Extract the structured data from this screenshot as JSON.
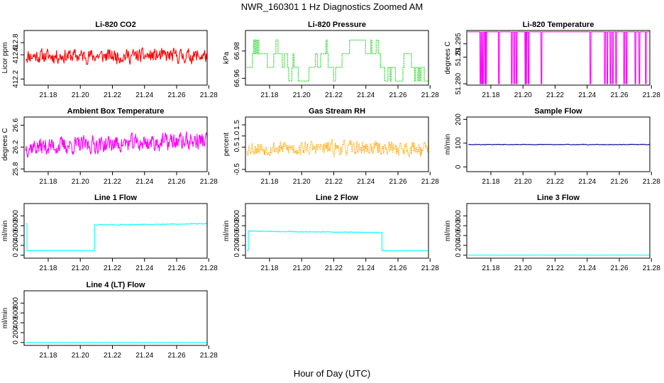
{
  "figure": {
    "title": "NWR_160301  1 Hz Diagnostics Zoomed AM",
    "xlabel": "Hour of Day (UTC)"
  },
  "chart_data": [
    {
      "id": "li820-co2",
      "type": "line",
      "title": "Li-820 CO2",
      "ylabel": "Licor ppm",
      "color": "#ff0000",
      "style": "solid",
      "xlim": [
        21.165,
        21.279
      ],
      "ylim": [
        412.1,
        413.0
      ],
      "yticks": [
        412.2,
        412.6,
        412.8
      ],
      "ytick_labels": [
        "412.2",
        "412.6",
        "412.8"
      ],
      "xticks": [
        21.18,
        21.2,
        21.22,
        21.24,
        21.26,
        21.28
      ],
      "xtick_labels": [
        "21.18",
        "21.20",
        "21.22",
        "21.24",
        "21.26",
        "21.28"
      ],
      "series": [
        {
          "name": "CO2",
          "segments": [
            {
              "x0": 21.166,
              "x1": 21.279,
              "kind": "noise",
              "base": 412.58,
              "amp": 0.16,
              "seed": 11
            }
          ]
        }
      ]
    },
    {
      "id": "li820-pressure",
      "type": "step",
      "title": "Li-820 Pressure",
      "ylabel": "kPa",
      "color": "#00cc00",
      "style": "dotted",
      "xlim": [
        21.165,
        21.279
      ],
      "ylim": [
        66.955,
        66.995
      ],
      "yticks": [
        66.96,
        66.98
      ],
      "ytick_labels": [
        "66.96",
        "66.98"
      ],
      "xticks": [
        21.18,
        21.2,
        21.22,
        21.24,
        21.26,
        21.28
      ],
      "xtick_labels": [
        "21.18",
        "21.20",
        "21.22",
        "21.24",
        "21.26",
        "21.28"
      ],
      "series": [
        {
          "name": "Pressure",
          "levels": [
            66.958,
            66.968,
            66.978,
            66.988
          ],
          "seed": 23,
          "hold": 60
        }
      ]
    },
    {
      "id": "li820-temperature",
      "type": "line",
      "title": "Li-820 Temperature",
      "ylabel": "degrees C",
      "color": "#ff00ff",
      "style": "solid",
      "xlim": [
        21.165,
        21.279
      ],
      "ylim": [
        51.2795,
        51.3
      ],
      "yticks": [
        51.28,
        51.29,
        51.295
      ],
      "ytick_labels": [
        "51.280",
        "51.29",
        "51.295"
      ],
      "xticks": [
        21.18,
        21.2,
        21.22,
        21.24,
        21.26,
        21.28
      ],
      "xtick_labels": [
        "21.18",
        "21.20",
        "21.22",
        "21.24",
        "21.26",
        "21.28"
      ],
      "series": [
        {
          "name": "Temperature",
          "base": 51.2995,
          "low": 51.28,
          "dips": [
            21.1735,
            21.1745,
            21.1752,
            21.1765,
            21.177,
            21.185,
            21.193,
            21.1945,
            21.196,
            21.2015,
            21.202,
            21.2035,
            21.2115,
            21.242,
            21.251,
            21.2525,
            21.2545,
            21.256,
            21.258,
            21.263,
            21.2645,
            21.27,
            21.2725,
            21.2765
          ]
        }
      ]
    },
    {
      "id": "ambient-box-temperature",
      "type": "line",
      "title": "Ambient Box Temperature",
      "ylabel": "degrees C",
      "color": "#ff00ff",
      "style": "solid",
      "xlim": [
        21.165,
        21.279
      ],
      "ylim": [
        25.75,
        26.75
      ],
      "yticks": [
        25.8,
        26.2,
        26.6
      ],
      "ytick_labels": [
        "25.8",
        "26.2",
        "26.6"
      ],
      "xticks": [
        21.18,
        21.2,
        21.22,
        21.24,
        21.26,
        21.28
      ],
      "xtick_labels": [
        "21.18",
        "21.20",
        "21.22",
        "21.24",
        "21.26",
        "21.28"
      ],
      "series": [
        {
          "name": "Box Temp",
          "segments": [
            {
              "x0": 21.166,
              "x1": 21.279,
              "kind": "noise",
              "base": 26.2,
              "amp": 0.22,
              "trend": 0.12,
              "seed": 37
            }
          ]
        }
      ]
    },
    {
      "id": "gas-stream-rh",
      "type": "line",
      "title": "Gas Stream RH",
      "ylabel": "percent",
      "color": "#ffa500",
      "style": "dotted",
      "xlim": [
        21.165,
        21.279
      ],
      "ylim": [
        -0.6,
        1.85
      ],
      "yticks": [
        -0.5,
        0.5,
        1.0,
        1.5
      ],
      "ytick_labels": [
        "-0.5",
        "0.5",
        "1.0",
        "1.5"
      ],
      "xticks": [
        21.18,
        21.2,
        21.22,
        21.24,
        21.26,
        21.28
      ],
      "xtick_labels": [
        "21.18",
        "21.20",
        "21.22",
        "21.24",
        "21.26",
        "21.28"
      ],
      "series": [
        {
          "name": "RH",
          "segments": [
            {
              "x0": 21.166,
              "x1": 21.279,
              "kind": "noise",
              "base": 0.45,
              "amp": 0.45,
              "seed": 53
            }
          ]
        }
      ]
    },
    {
      "id": "sample-flow",
      "type": "line",
      "title": "Sample Flow",
      "ylabel": "ml/min",
      "color": "#00008b",
      "style": "solid",
      "xlim": [
        21.165,
        21.279
      ],
      "ylim": [
        -20,
        210
      ],
      "yticks": [
        0,
        100,
        200
      ],
      "ytick_labels": [
        "0",
        "100",
        "200"
      ],
      "xticks": [
        21.18,
        21.2,
        21.22,
        21.24,
        21.26,
        21.28
      ],
      "xtick_labels": [
        "21.18",
        "21.20",
        "21.22",
        "21.24",
        "21.26",
        "21.28"
      ],
      "series": [
        {
          "name": "Sample Flow",
          "segments": [
            {
              "x0": 21.166,
              "x1": 21.279,
              "kind": "noise",
              "base": 94,
              "amp": 2,
              "seed": 61
            }
          ]
        }
      ]
    },
    {
      "id": "line-1-flow",
      "type": "line",
      "title": "Line 1 Flow",
      "ylabel": "ml/min",
      "color": "#00ffff",
      "style": "solid",
      "xlim": [
        21.165,
        21.279
      ],
      "ylim": [
        -60,
        1050
      ],
      "yticks": [
        0,
        200,
        400,
        600,
        800
      ],
      "ytick_labels": [
        "0",
        "200",
        "400",
        "600",
        "800"
      ],
      "xticks": [
        21.18,
        21.2,
        21.22,
        21.24,
        21.26,
        21.28
      ],
      "xtick_labels": [
        "21.18",
        "21.20",
        "21.22",
        "21.24",
        "21.26",
        "21.28"
      ],
      "series": [
        {
          "name": "Line 1",
          "segments": [
            {
              "x0": 21.166,
              "x1": 21.1668,
              "kind": "noise",
              "base": 640,
              "amp": 15,
              "seed": 71
            },
            {
              "x0": 21.1668,
              "x1": 21.2088,
              "kind": "noise",
              "base": 95,
              "amp": 5,
              "seed": 72
            },
            {
              "x0": 21.2088,
              "x1": 21.279,
              "kind": "noise",
              "base": 615,
              "amp": 14,
              "trend": 25,
              "seed": 73
            }
          ]
        }
      ]
    },
    {
      "id": "line-2-flow",
      "type": "line",
      "title": "Line 2 Flow",
      "ylabel": "ml/min",
      "color": "#00ffff",
      "style": "solid",
      "xlim": [
        21.165,
        21.279
      ],
      "ylim": [
        -60,
        1050
      ],
      "yticks": [
        0,
        200,
        400,
        600,
        800
      ],
      "ytick_labels": [
        "0",
        "200",
        "400",
        "600",
        "800"
      ],
      "xticks": [
        21.18,
        21.2,
        21.22,
        21.24,
        21.26,
        21.28
      ],
      "xtick_labels": [
        "21.18",
        "21.20",
        "21.22",
        "21.24",
        "21.26",
        "21.28"
      ],
      "series": [
        {
          "name": "Line 2",
          "segments": [
            {
              "x0": 21.166,
              "x1": 21.1668,
              "kind": "noise",
              "base": 95,
              "amp": 5,
              "seed": 81
            },
            {
              "x0": 21.1668,
              "x1": 21.25,
              "kind": "noise",
              "base": 490,
              "amp": 12,
              "trend": -30,
              "seed": 82
            },
            {
              "x0": 21.25,
              "x1": 21.279,
              "kind": "noise",
              "base": 90,
              "amp": 5,
              "seed": 83
            }
          ]
        }
      ]
    },
    {
      "id": "line-3-flow",
      "type": "line",
      "title": "Line 3 Flow",
      "ylabel": "ml/min",
      "color": "#00ffff",
      "style": "solid",
      "xlim": [
        21.165,
        21.279
      ],
      "ylim": [
        -60,
        1050
      ],
      "yticks": [
        0,
        200,
        400,
        600,
        800
      ],
      "ytick_labels": [
        "0",
        "200",
        "400",
        "600",
        "800"
      ],
      "xticks": [
        21.18,
        21.2,
        21.22,
        21.24,
        21.26,
        21.28
      ],
      "xtick_labels": [
        "21.18",
        "21.20",
        "21.22",
        "21.24",
        "21.26",
        "21.28"
      ],
      "series": [
        {
          "name": "Line 3",
          "segments": [
            {
              "x0": 21.166,
              "x1": 21.279,
              "kind": "noise",
              "base": 2,
              "amp": 2,
              "seed": 91
            }
          ]
        }
      ]
    },
    {
      "id": "line-4-lt-flow",
      "type": "line",
      "title": "Line 4 (LT) Flow",
      "ylabel": "ml/min",
      "color": "#00ffff",
      "style": "solid",
      "xlim": [
        21.165,
        21.279
      ],
      "ylim": [
        -60,
        1050
      ],
      "yticks": [
        0,
        200,
        400,
        600,
        800
      ],
      "ytick_labels": [
        "0",
        "200",
        "400",
        "600",
        "800"
      ],
      "xticks": [
        21.18,
        21.2,
        21.22,
        21.24,
        21.26,
        21.28
      ],
      "xtick_labels": [
        "21.18",
        "21.20",
        "21.22",
        "21.24",
        "21.26",
        "21.28"
      ],
      "series": [
        {
          "name": "Line 4",
          "segments": [
            {
              "x0": 21.166,
              "x1": 21.279,
              "kind": "noise",
              "base": 2,
              "amp": 2,
              "seed": 97
            }
          ]
        }
      ]
    }
  ]
}
